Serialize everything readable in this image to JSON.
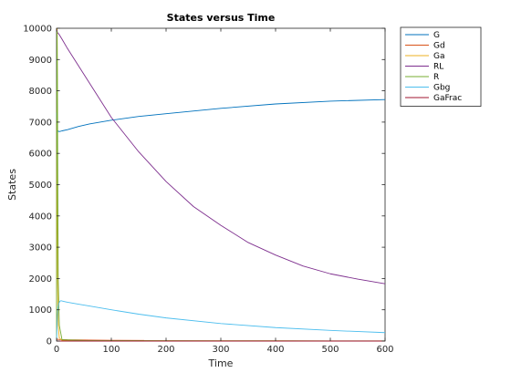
{
  "chart_data": {
    "type": "line",
    "title": "States versus Time",
    "xlabel": "Time",
    "ylabel": "States",
    "xlim": [
      0,
      600
    ],
    "ylim": [
      0,
      10000
    ],
    "xticks": [
      0,
      100,
      200,
      300,
      400,
      500,
      600
    ],
    "yticks": [
      0,
      1000,
      2000,
      3000,
      4000,
      5000,
      6000,
      7000,
      8000,
      9000,
      10000
    ],
    "grid": false,
    "legend_position": "outside-top-right",
    "series": [
      {
        "name": "G",
        "color": "#0072BD",
        "x": [
          0,
          0.5,
          1,
          2,
          4,
          6,
          10,
          20,
          40,
          60,
          100,
          150,
          200,
          300,
          400,
          500,
          600
        ],
        "y": [
          7300,
          7000,
          6800,
          6720,
          6700,
          6700,
          6720,
          6760,
          6860,
          6940,
          7060,
          7180,
          7270,
          7440,
          7580,
          7670,
          7720
        ]
      },
      {
        "name": "Gd",
        "color": "#D95319",
        "x": [
          0,
          1,
          5,
          20,
          60,
          100,
          160
        ],
        "y": [
          0,
          60,
          50,
          40,
          30,
          25,
          20
        ]
      },
      {
        "name": "Ga",
        "color": "#EDB120",
        "x": [
          0,
          0.5,
          1,
          1.5,
          2,
          3,
          5,
          10,
          50,
          100,
          200,
          300,
          400,
          500,
          600
        ],
        "y": [
          0,
          7000,
          10000,
          5000,
          2000,
          500,
          100,
          20,
          10,
          8,
          6,
          5,
          4,
          3,
          3
        ]
      },
      {
        "name": "RL",
        "color": "#7E2F8E",
        "x": [
          0,
          2,
          4,
          10,
          20,
          40,
          60,
          80,
          100,
          150,
          200,
          250,
          300,
          350,
          400,
          450,
          500,
          550,
          600
        ],
        "y": [
          9950,
          9850,
          9820,
          9650,
          9350,
          8800,
          8250,
          7700,
          7150,
          6050,
          5100,
          4300,
          3700,
          3150,
          2750,
          2400,
          2150,
          1980,
          1830
        ]
      },
      {
        "name": "R",
        "color": "#77AC30",
        "x": [
          0,
          0.5,
          1,
          1.5,
          2,
          3,
          5,
          10,
          50,
          100,
          200,
          300,
          400,
          500,
          600
        ],
        "y": [
          0,
          8000,
          9900,
          8500,
          6000,
          2000,
          500,
          40,
          20,
          15,
          12,
          10,
          8,
          6,
          5
        ]
      },
      {
        "name": "Gbg",
        "color": "#4DBEEE",
        "x": [
          0,
          1,
          2,
          4,
          6,
          8,
          10,
          15,
          20,
          40,
          60,
          100,
          150,
          200,
          300,
          400,
          500,
          600
        ],
        "y": [
          0,
          600,
          1000,
          1200,
          1270,
          1290,
          1280,
          1260,
          1240,
          1180,
          1120,
          1000,
          860,
          740,
          560,
          430,
          340,
          270
        ]
      },
      {
        "name": "GaFrac",
        "color": "#A2142F",
        "x": [
          0,
          600
        ],
        "y": [
          0,
          0
        ]
      }
    ]
  }
}
